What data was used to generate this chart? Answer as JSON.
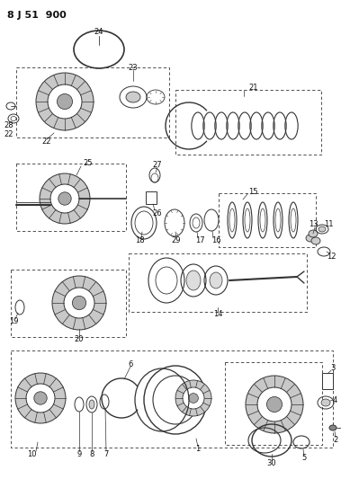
{
  "title": "8 J 51  900",
  "bg_color": "#ffffff",
  "line_color": "#333333",
  "text_color": "#111111",
  "title_fontsize": 8,
  "label_fontsize": 6,
  "fig_width": 3.79,
  "fig_height": 5.33,
  "dpi": 100
}
